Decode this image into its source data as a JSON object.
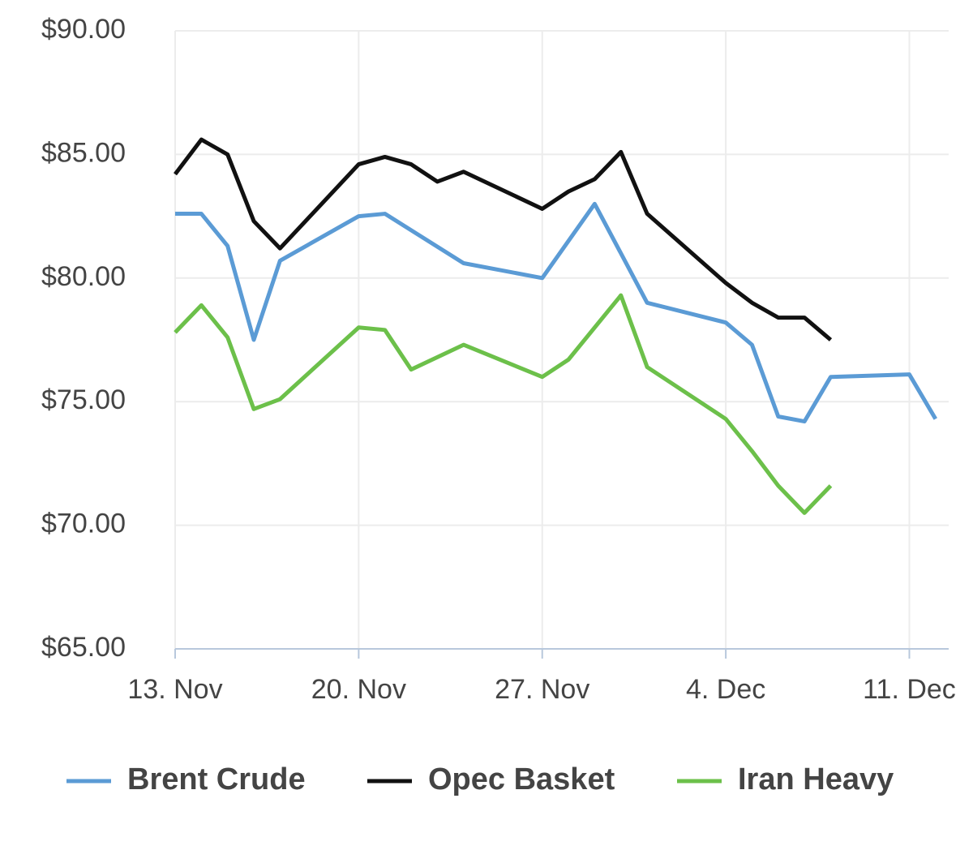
{
  "chart_data": {
    "type": "line",
    "xlim": [
      0,
      29.5
    ],
    "xticks": [
      {
        "value": 0,
        "label": "13. Nov"
      },
      {
        "value": 7,
        "label": "20. Nov"
      },
      {
        "value": 14,
        "label": "27. Nov"
      },
      {
        "value": 21,
        "label": "4. Dec"
      },
      {
        "value": 28,
        "label": "11. Dec"
      }
    ],
    "ylim": [
      65,
      90
    ],
    "yticks": [
      {
        "value": 65,
        "label": "$65.00"
      },
      {
        "value": 70,
        "label": "$70.00"
      },
      {
        "value": 75,
        "label": "$75.00"
      },
      {
        "value": 80,
        "label": "$80.00"
      },
      {
        "value": 85,
        "label": "$85.00"
      },
      {
        "value": 90,
        "label": "$90.00"
      }
    ],
    "grid": true,
    "legend": "bottom",
    "series": [
      {
        "name": "Brent Crude",
        "color": "#5b9bd5",
        "x": [
          0,
          1,
          2,
          3,
          4,
          7,
          8,
          11,
          14,
          16,
          18,
          21,
          22,
          23,
          24,
          25,
          28,
          29
        ],
        "values": [
          82.6,
          82.6,
          81.3,
          77.5,
          80.7,
          82.5,
          82.6,
          80.6,
          80.0,
          83.0,
          79.0,
          78.2,
          77.3,
          74.4,
          74.2,
          76.0,
          76.1,
          74.3
        ]
      },
      {
        "name": "Opec Basket",
        "color": "#111111",
        "x": [
          0,
          1,
          2,
          3,
          4,
          7,
          8,
          9,
          10,
          11,
          14,
          15,
          16,
          17,
          18,
          21,
          22,
          23,
          24,
          25
        ],
        "values": [
          84.2,
          85.6,
          85.0,
          82.3,
          81.2,
          84.6,
          84.9,
          84.6,
          83.9,
          84.3,
          82.8,
          83.5,
          84.0,
          85.1,
          82.6,
          79.8,
          79.0,
          78.4,
          78.4,
          77.5
        ]
      },
      {
        "name": "Iran Heavy",
        "color": "#6cc04a",
        "x": [
          0,
          1,
          2,
          3,
          4,
          7,
          8,
          9,
          11,
          14,
          15,
          17,
          18,
          21,
          22,
          23,
          24,
          25
        ],
        "values": [
          77.8,
          78.9,
          77.6,
          74.7,
          75.1,
          78.0,
          77.9,
          76.3,
          77.3,
          76.0,
          76.7,
          79.3,
          76.4,
          74.3,
          73.0,
          71.6,
          70.5,
          71.6
        ]
      }
    ]
  }
}
